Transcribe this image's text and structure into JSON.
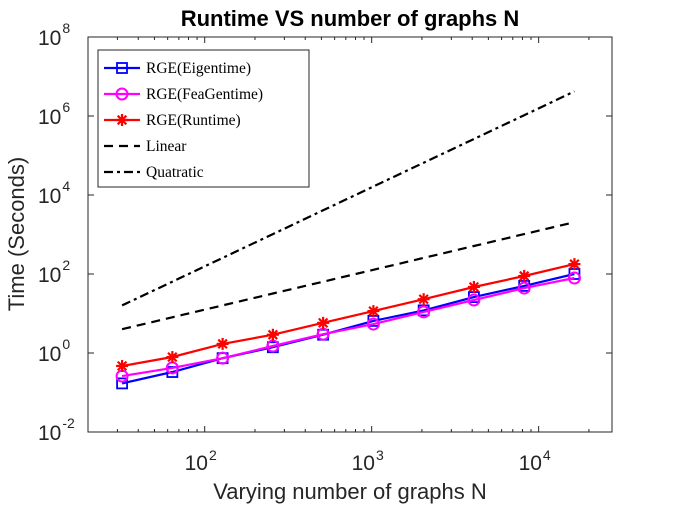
{
  "chart_data": {
    "type": "line",
    "title": "Runtime VS number of graphs N",
    "xlabel": "Varying number of graphs N",
    "ylabel": "Time (Seconds)",
    "xscale": "log",
    "yscale": "log",
    "xlim": [
      20,
      27500
    ],
    "ylim": [
      0.01,
      100000000
    ],
    "xticks": [
      {
        "base": "10",
        "exp": "2",
        "value": 100
      },
      {
        "base": "10",
        "exp": "3",
        "value": 1000
      },
      {
        "base": "10",
        "exp": "4",
        "value": 10000
      }
    ],
    "yticks": [
      {
        "base": "10",
        "exp": "-2",
        "value": 0.01
      },
      {
        "base": "10",
        "exp": "0",
        "value": 1
      },
      {
        "base": "10",
        "exp": "2",
        "value": 100
      },
      {
        "base": "10",
        "exp": "4",
        "value": 10000
      },
      {
        "base": "10",
        "exp": "6",
        "value": 1000000
      },
      {
        "base": "10",
        "exp": "8",
        "value": 100000000
      }
    ],
    "grid": false,
    "legend_position": "upper-left",
    "x": [
      32,
      64,
      128,
      256,
      512,
      1024,
      2048,
      4096,
      8192,
      16384
    ],
    "series": [
      {
        "name": "RGE(Eigentime)",
        "color": "#0000ff",
        "marker": "square",
        "linestyle": "solid",
        "values": [
          0.17,
          0.33,
          0.74,
          1.4,
          2.9,
          6.5,
          12,
          26,
          50,
          100
        ]
      },
      {
        "name": "RGE(FeaGentime)",
        "color": "#ff00ff",
        "marker": "circle",
        "linestyle": "solid",
        "values": [
          0.26,
          0.42,
          0.74,
          1.5,
          3.0,
          5.4,
          11,
          22,
          44,
          79
        ]
      },
      {
        "name": "RGE(Runtime)",
        "color": "#ff0000",
        "marker": "asterisk",
        "linestyle": "solid",
        "values": [
          0.47,
          0.79,
          1.7,
          2.9,
          5.8,
          11.5,
          23,
          47,
          89,
          178
        ]
      },
      {
        "name": "Linear",
        "color": "#000000",
        "marker": "none",
        "linestyle": "dashed",
        "values": [
          4.0,
          8.0,
          16,
          32,
          64,
          128,
          256,
          512,
          1024,
          2048
        ]
      },
      {
        "name": "Quatratic",
        "color": "#000000",
        "marker": "none",
        "linestyle": "dashdot",
        "values": [
          16,
          64,
          256,
          1024,
          4096,
          16384,
          65536,
          262144,
          1048576,
          4194304
        ]
      }
    ]
  }
}
